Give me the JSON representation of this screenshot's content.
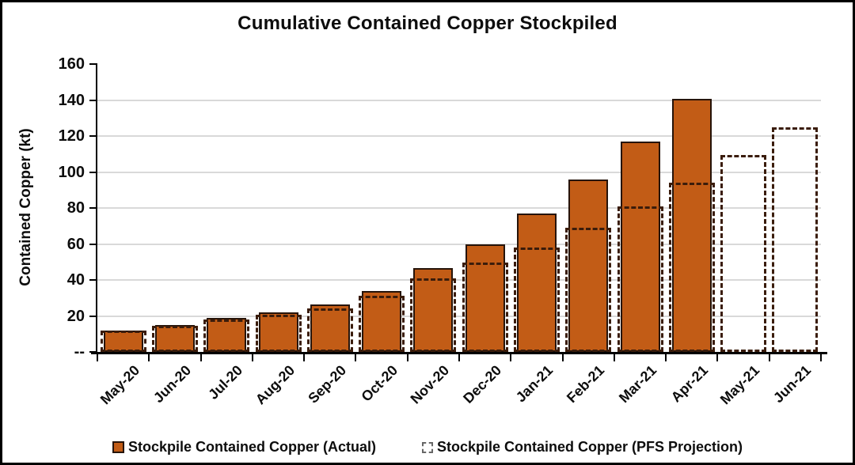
{
  "chart_data": {
    "type": "bar",
    "title": "Cumulative Contained Copper Stockpiled",
    "xlabel": "",
    "ylabel": "Contained Copper (kt)",
    "ylim": [
      0,
      160
    ],
    "ytick_step": 20,
    "ytick_labels_bottom_up": [
      "--",
      "20",
      "40",
      "60",
      "80",
      "100",
      "120",
      "140",
      "160"
    ],
    "grid": true,
    "legend_position": "bottom",
    "categories": [
      "May-20",
      "Jun-20",
      "Jul-20",
      "Aug-20",
      "Sep-20",
      "Oct-20",
      "Nov-20",
      "Dec-20",
      "Jan-21",
      "Feb-21",
      "Mar-21",
      "Apr-21",
      "May-21",
      "Jun-21"
    ],
    "series": [
      {
        "name": "Stockpile Contained Copper (Actual)",
        "style": "solid",
        "values": [
          12,
          15,
          19,
          22,
          26.5,
          34,
          46.5,
          60,
          77,
          96,
          117,
          140.5,
          null,
          null
        ]
      },
      {
        "name": "Stockpile Contained Copper (PFS Projection)",
        "style": "dashed",
        "values": [
          12,
          14.5,
          18,
          20.5,
          24,
          31,
          41,
          49.5,
          58,
          69,
          81,
          94,
          109.5,
          125
        ]
      }
    ]
  },
  "colors": {
    "bar_fill": "#c25c16",
    "bar_border": "#26140a",
    "pfs_dash": "#3a1c0b",
    "gridline": "#d9d9d9",
    "axis": "#000000"
  }
}
